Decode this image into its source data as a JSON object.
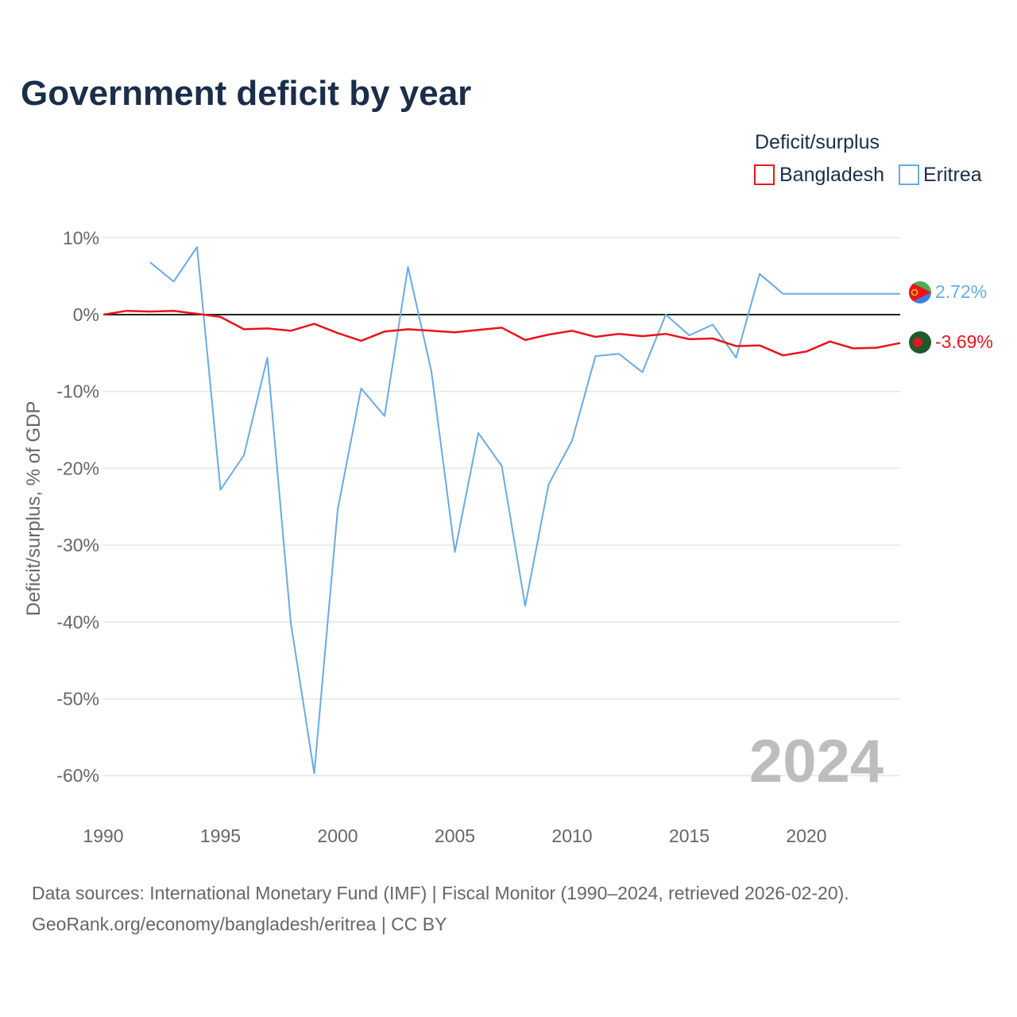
{
  "page": {
    "title": "Government deficit by year",
    "year_watermark": "2024",
    "source_line1": "Data sources: International Monetary Fund (IMF) | Fiscal Monitor (1990–2024, retrieved 2026-02-20).",
    "source_line2": "GeoRank.org/economy/bangladesh/eritrea | CC BY"
  },
  "legend": {
    "title": "Deficit/surplus",
    "items": [
      {
        "name": "Bangladesh",
        "color": "#e8141c"
      },
      {
        "name": "Eritrea",
        "color": "#6aaae4"
      }
    ]
  },
  "chart_data": {
    "type": "line",
    "title": "Government deficit by year",
    "xlabel": "",
    "ylabel": "Deficit/surplus, % of GDP",
    "xlim": [
      1990,
      2024
    ],
    "ylim": [
      -65,
      10
    ],
    "y_ticks": [
      10,
      0,
      -10,
      -20,
      -30,
      -40,
      -50,
      -60
    ],
    "y_tick_labels": [
      "10%",
      "0%",
      "-10%",
      "-20%",
      "-30%",
      "-40%",
      "-50%",
      "-60%"
    ],
    "x_ticks": [
      1990,
      1995,
      2000,
      2005,
      2010,
      2015,
      2020
    ],
    "x_tick_labels": [
      "1990",
      "1995",
      "2000",
      "2005",
      "2010",
      "2015",
      "2020"
    ],
    "grid": true,
    "legend_position": "top-right",
    "series": [
      {
        "name": "Bangladesh",
        "color": "#e8141c",
        "end_label": "-3.69%",
        "x": [
          1990,
          1991,
          1992,
          1993,
          1994,
          1995,
          1996,
          1997,
          1998,
          1999,
          2000,
          2001,
          2002,
          2003,
          2004,
          2005,
          2006,
          2007,
          2008,
          2009,
          2010,
          2011,
          2012,
          2013,
          2014,
          2015,
          2016,
          2017,
          2018,
          2019,
          2020,
          2021,
          2022,
          2023,
          2024
        ],
        "values": [
          0.0,
          0.5,
          0.4,
          0.5,
          0.1,
          -0.3,
          -1.9,
          -1.8,
          -2.1,
          -1.2,
          -2.4,
          -3.4,
          -2.2,
          -1.9,
          -2.1,
          -2.3,
          -2.0,
          -1.7,
          -3.3,
          -2.6,
          -2.1,
          -2.9,
          -2.5,
          -2.8,
          -2.5,
          -3.2,
          -3.1,
          -4.1,
          -4.0,
          -5.3,
          -4.8,
          -3.5,
          -4.4,
          -4.3,
          -3.69
        ]
      },
      {
        "name": "Eritrea",
        "color": "#6aaae4",
        "end_label": "2.72%",
        "x": [
          1992,
          1993,
          1994,
          1995,
          1996,
          1997,
          1998,
          1999,
          2000,
          2001,
          2002,
          2003,
          2004,
          2005,
          2006,
          2007,
          2008,
          2009,
          2010,
          2011,
          2012,
          2013,
          2014,
          2015,
          2016,
          2017,
          2018,
          2019,
          2020,
          2021,
          2022,
          2023,
          2024
        ],
        "values": [
          6.8,
          4.3,
          8.8,
          -22.8,
          -18.3,
          -5.6,
          -40.1,
          -59.7,
          -25.4,
          -9.6,
          -13.2,
          6.2,
          -7.4,
          -30.9,
          -15.4,
          -19.7,
          -37.9,
          -22.1,
          -16.4,
          -5.4,
          -5.1,
          -7.5,
          0.0,
          -2.7,
          -1.3,
          -5.6,
          5.3,
          2.72,
          2.72,
          2.72,
          2.72,
          2.72,
          2.72
        ]
      }
    ]
  }
}
